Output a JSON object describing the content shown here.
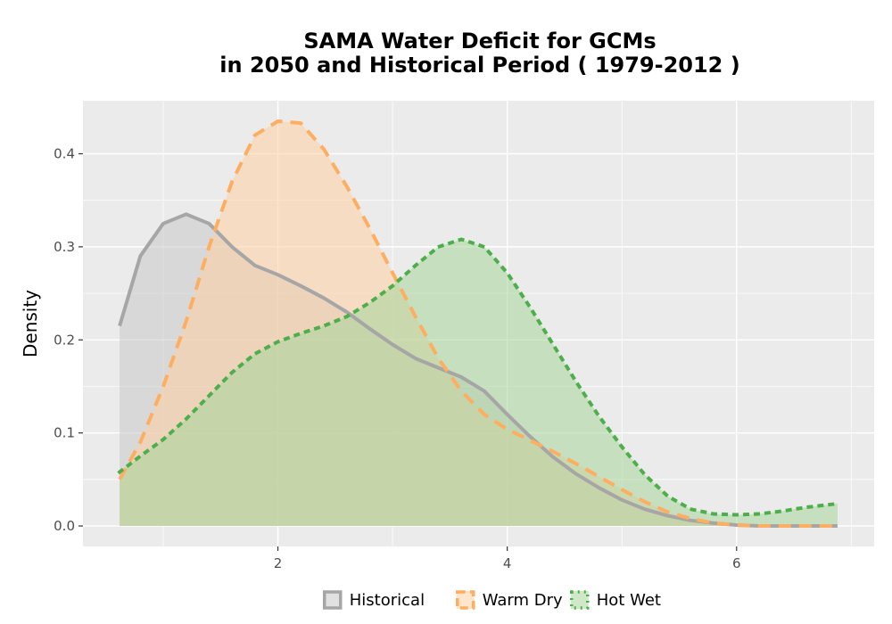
{
  "chart_data": {
    "type": "area",
    "title_lines": [
      "SAMA  Water Deficit for GCMs",
      "in 2050 and Historical Period ( 1979-2012 )"
    ],
    "xlabel": "",
    "ylabel": "Density",
    "xlim": [
      0.3,
      7.2
    ],
    "ylim": [
      -0.022,
      0.457
    ],
    "x_ticks": [
      2,
      4,
      6
    ],
    "x_tick_labels": [
      "2",
      "4",
      "6"
    ],
    "y_ticks": [
      0.0,
      0.1,
      0.2,
      0.3,
      0.4
    ],
    "y_tick_labels": [
      "0.0",
      "0.1",
      "0.2",
      "0.3",
      "0.4"
    ],
    "grid": true,
    "legend_position": "bottom",
    "series": [
      {
        "name": "Historical",
        "line_color": "#a6a6a6",
        "fill_color": "#c8c8c8",
        "dash": "solid",
        "x": [
          0.62,
          0.8,
          1.0,
          1.2,
          1.4,
          1.6,
          1.8,
          2.0,
          2.2,
          2.4,
          2.6,
          2.8,
          3.0,
          3.2,
          3.4,
          3.6,
          3.8,
          4.0,
          4.2,
          4.4,
          4.6,
          4.8,
          5.0,
          5.2,
          5.4,
          5.6,
          5.8,
          6.0,
          6.2,
          6.4,
          6.6,
          6.88
        ],
        "y": [
          0.215,
          0.29,
          0.325,
          0.335,
          0.325,
          0.3,
          0.28,
          0.27,
          0.258,
          0.245,
          0.23,
          0.212,
          0.195,
          0.18,
          0.17,
          0.16,
          0.145,
          0.12,
          0.096,
          0.074,
          0.056,
          0.041,
          0.028,
          0.018,
          0.011,
          0.006,
          0.003,
          0.001,
          0.0,
          0.0,
          0.0,
          0.0
        ]
      },
      {
        "name": "Warm Dry",
        "line_color": "#fdae61",
        "fill_color": "#fdd0a2",
        "dash": "dashed",
        "x": [
          0.62,
          0.8,
          1.0,
          1.2,
          1.4,
          1.6,
          1.8,
          2.0,
          2.2,
          2.4,
          2.6,
          2.8,
          3.0,
          3.2,
          3.4,
          3.6,
          3.8,
          4.0,
          4.2,
          4.4,
          4.6,
          4.8,
          5.0,
          5.2,
          5.4,
          5.6,
          5.8,
          6.0,
          6.2,
          6.4,
          6.6,
          6.88
        ],
        "y": [
          0.05,
          0.09,
          0.15,
          0.22,
          0.3,
          0.37,
          0.42,
          0.435,
          0.433,
          0.405,
          0.365,
          0.32,
          0.272,
          0.225,
          0.18,
          0.145,
          0.12,
          0.104,
          0.092,
          0.08,
          0.067,
          0.053,
          0.039,
          0.026,
          0.015,
          0.008,
          0.003,
          0.001,
          0.0,
          0.0,
          0.0,
          0.0
        ]
      },
      {
        "name": "Hot Wet",
        "line_color": "#4daf4a",
        "fill_color": "#a6d59a",
        "dash": "dotted",
        "x": [
          0.62,
          0.8,
          1.0,
          1.2,
          1.4,
          1.6,
          1.8,
          2.0,
          2.2,
          2.4,
          2.6,
          2.8,
          3.0,
          3.2,
          3.4,
          3.6,
          3.8,
          4.0,
          4.2,
          4.4,
          4.6,
          4.8,
          5.0,
          5.2,
          5.4,
          5.6,
          5.8,
          6.0,
          6.2,
          6.4,
          6.6,
          6.88
        ],
        "y": [
          0.058,
          0.075,
          0.093,
          0.115,
          0.14,
          0.165,
          0.185,
          0.198,
          0.207,
          0.215,
          0.225,
          0.24,
          0.258,
          0.28,
          0.3,
          0.308,
          0.3,
          0.272,
          0.235,
          0.195,
          0.155,
          0.118,
          0.085,
          0.055,
          0.032,
          0.018,
          0.013,
          0.012,
          0.013,
          0.016,
          0.02,
          0.024
        ]
      }
    ]
  }
}
